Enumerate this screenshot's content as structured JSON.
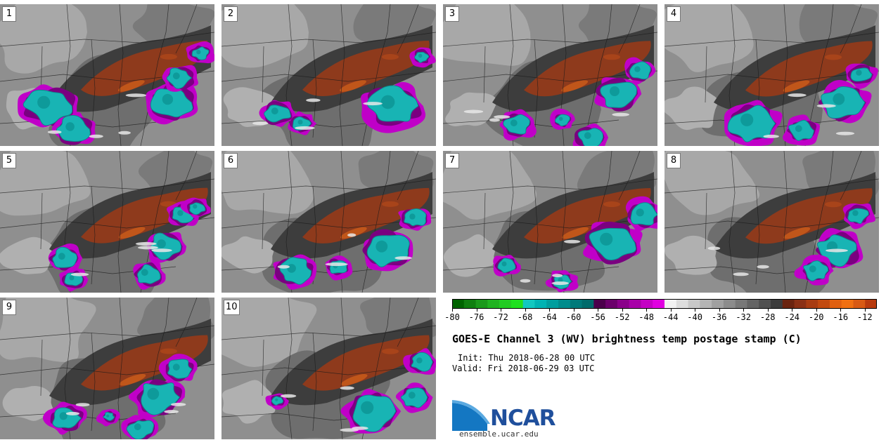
{
  "panels": [
    {
      "label": "1"
    },
    {
      "label": "2"
    },
    {
      "label": "3"
    },
    {
      "label": "4"
    },
    {
      "label": "5"
    },
    {
      "label": "6"
    },
    {
      "label": "7"
    },
    {
      "label": "8"
    },
    {
      "label": "9"
    },
    {
      "label": "10"
    }
  ],
  "colorbar": {
    "tick_labels": [
      "-80",
      "-76",
      "-72",
      "-68",
      "-64",
      "-60",
      "-56",
      "-52",
      "-48",
      "-44",
      "-40",
      "-36",
      "-32",
      "-28",
      "-24",
      "-20",
      "-16",
      "-12"
    ],
    "range": [
      -80,
      -10
    ],
    "colors": [
      "#006400",
      "#0f7f0f",
      "#1a991a",
      "#20b320",
      "#22cc22",
      "#1fe01f",
      "#11c8c0",
      "#00b3b3",
      "#009e9e",
      "#008c8c",
      "#007a7a",
      "#006b6b",
      "#4b004b",
      "#6b006b",
      "#8a008a",
      "#a800a8",
      "#c400c4",
      "#e000e0",
      "#f2f2f2",
      "#dddddd",
      "#c8c8c8",
      "#b4b4b4",
      "#a0a0a0",
      "#8c8c8c",
      "#787878",
      "#646464",
      "#505050",
      "#3c3c3c",
      "#6b2410",
      "#8a3015",
      "#a83c12",
      "#c24a10",
      "#e06010",
      "#f07012",
      "#d85a14",
      "#b83a0e"
    ]
  },
  "title": "GOES-E Channel 3 (WV) brightness temp postage stamp (C)",
  "init_text": "Init: Thu 2018-06-28 00 UTC",
  "valid_text": "Valid: Fri 2018-06-29 03 UTC",
  "logo": {
    "text": "NCAR",
    "url": "ensemble.ucar.edu"
  },
  "colors": {
    "dry_band": "#8e3a1c",
    "cold_cloud_cyan": "#18b4b4",
    "cold_cloud_magenta": "#b000b8",
    "background_gray": "#8a8a8a"
  }
}
